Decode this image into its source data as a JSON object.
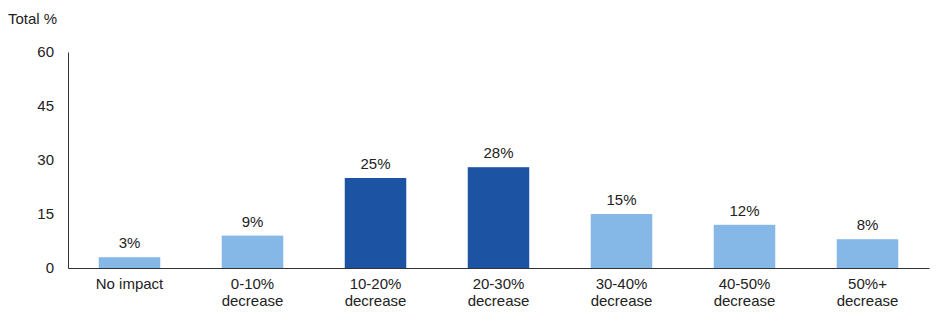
{
  "chart_data": {
    "type": "bar",
    "y_label": "Total %",
    "categories": [
      "No impact",
      "0-10%\ndecrease",
      "10-20%\ndecrease",
      "20-30%\ndecrease",
      "30-40%\ndecrease",
      "40-50%\ndecrease",
      "50%+\ndecrease"
    ],
    "values": [
      3,
      9,
      25,
      28,
      15,
      12,
      8
    ],
    "value_labels": [
      "3%",
      "9%",
      "25%",
      "28%",
      "15%",
      "12%",
      "8%"
    ],
    "colors": [
      "#85b8e6",
      "#85b8e6",
      "#1c54a3",
      "#1c54a3",
      "#85b8e6",
      "#85b8e6",
      "#85b8e6"
    ],
    "data_labels": true,
    "grid": false,
    "ylim": [
      0,
      60
    ],
    "yticks": [
      0,
      15,
      30,
      45,
      60
    ]
  }
}
